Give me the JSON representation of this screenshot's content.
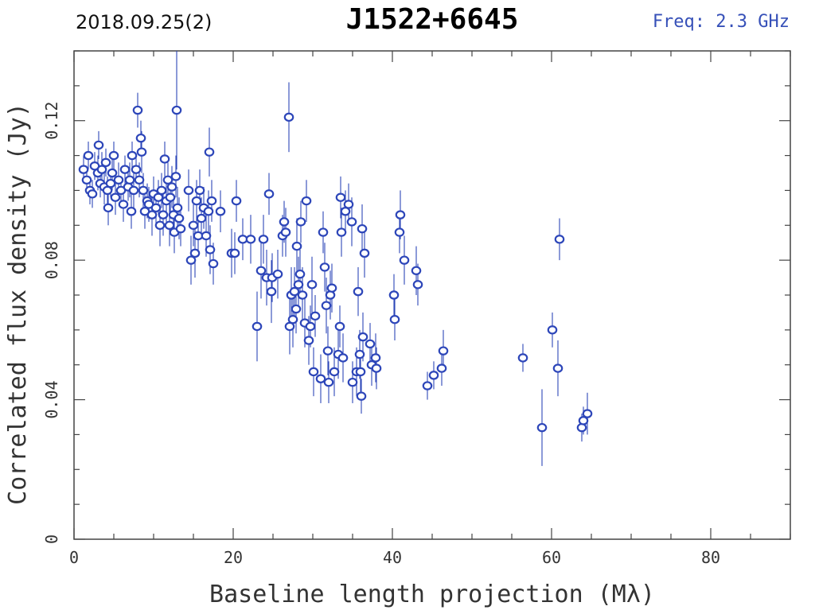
{
  "header": {
    "date_label": "2018.09.25(2)",
    "source_name": "J1522+6645",
    "freq_label": "Freq: 2.3 GHz"
  },
  "colors": {
    "marker": "#2d46b9",
    "axis": "#444444"
  },
  "chart_data": {
    "type": "scatter",
    "title": "J1522+6645",
    "xlabel": "Baseline length projection (Mλ)",
    "ylabel": "Correlated flux density (Jy)",
    "xlim": [
      0,
      90
    ],
    "ylim": [
      0,
      0.14
    ],
    "xticks": [
      0,
      20,
      40,
      60,
      80
    ],
    "xtick_labels": [
      "0",
      "20",
      "40",
      "60",
      "80"
    ],
    "yticks": [
      0,
      0.04,
      0.08,
      0.12
    ],
    "ytick_labels": [
      "0",
      "0.04",
      "0.08",
      "0.12"
    ],
    "grid": false,
    "series": [
      {
        "points": [
          [
            1.2,
            0.106,
            0.004
          ],
          [
            1.6,
            0.103,
            0.004
          ],
          [
            1.8,
            0.11,
            0.004
          ],
          [
            2.0,
            0.1,
            0.004
          ],
          [
            2.3,
            0.099,
            0.004
          ],
          [
            2.6,
            0.107,
            0.004
          ],
          [
            3.0,
            0.105,
            0.005
          ],
          [
            3.1,
            0.113,
            0.004
          ],
          [
            3.3,
            0.102,
            0.004
          ],
          [
            3.5,
            0.106,
            0.005
          ],
          [
            3.8,
            0.101,
            0.005
          ],
          [
            4.0,
            0.108,
            0.004
          ],
          [
            4.2,
            0.1,
            0.004
          ],
          [
            4.3,
            0.095,
            0.005
          ],
          [
            4.6,
            0.102,
            0.004
          ],
          [
            4.8,
            0.105,
            0.005
          ],
          [
            5.0,
            0.11,
            0.004
          ],
          [
            5.2,
            0.098,
            0.005
          ],
          [
            5.6,
            0.103,
            0.005
          ],
          [
            5.9,
            0.1,
            0.004
          ],
          [
            6.2,
            0.096,
            0.005
          ],
          [
            6.4,
            0.106,
            0.004
          ],
          [
            6.8,
            0.101,
            0.004
          ],
          [
            7.0,
            0.103,
            0.005
          ],
          [
            7.2,
            0.094,
            0.005
          ],
          [
            7.3,
            0.11,
            0.004
          ],
          [
            7.5,
            0.1,
            0.005
          ],
          [
            7.8,
            0.106,
            0.004
          ],
          [
            8.0,
            0.123,
            0.005
          ],
          [
            8.2,
            0.103,
            0.005
          ],
          [
            8.4,
            0.115,
            0.005
          ],
          [
            8.5,
            0.111,
            0.006
          ],
          [
            8.7,
            0.1,
            0.005
          ],
          [
            8.9,
            0.094,
            0.005
          ],
          [
            9.2,
            0.097,
            0.005
          ],
          [
            9.4,
            0.096,
            0.005
          ],
          [
            9.8,
            0.093,
            0.006
          ],
          [
            10.0,
            0.099,
            0.005
          ],
          [
            10.3,
            0.095,
            0.005
          ],
          [
            10.6,
            0.098,
            0.005
          ],
          [
            10.8,
            0.09,
            0.006
          ],
          [
            11.0,
            0.1,
            0.005
          ],
          [
            11.2,
            0.093,
            0.006
          ],
          [
            11.4,
            0.109,
            0.005
          ],
          [
            11.6,
            0.097,
            0.006
          ],
          [
            11.8,
            0.103,
            0.005
          ],
          [
            12.0,
            0.09,
            0.006
          ],
          [
            12.1,
            0.098,
            0.006
          ],
          [
            12.3,
            0.101,
            0.006
          ],
          [
            12.5,
            0.093,
            0.006
          ],
          [
            12.6,
            0.088,
            0.006
          ],
          [
            12.8,
            0.104,
            0.006
          ],
          [
            12.9,
            0.123,
            0.017
          ],
          [
            13.0,
            0.095,
            0.006
          ],
          [
            13.2,
            0.092,
            0.006
          ],
          [
            13.4,
            0.089,
            0.005
          ],
          [
            14.4,
            0.1,
            0.006
          ],
          [
            14.7,
            0.08,
            0.007
          ],
          [
            15.0,
            0.09,
            0.006
          ],
          [
            15.2,
            0.082,
            0.007
          ],
          [
            15.4,
            0.097,
            0.006
          ],
          [
            15.6,
            0.087,
            0.006
          ],
          [
            15.8,
            0.1,
            0.006
          ],
          [
            16.0,
            0.092,
            0.006
          ],
          [
            16.3,
            0.095,
            0.006
          ],
          [
            16.6,
            0.087,
            0.006
          ],
          [
            16.9,
            0.094,
            0.006
          ],
          [
            17.0,
            0.111,
            0.007
          ],
          [
            17.1,
            0.083,
            0.007
          ],
          [
            17.3,
            0.097,
            0.006
          ],
          [
            17.5,
            0.079,
            0.006
          ],
          [
            18.4,
            0.094,
            0.006
          ],
          [
            19.8,
            0.082,
            0.007
          ],
          [
            20.2,
            0.082,
            0.006
          ],
          [
            20.4,
            0.097,
            0.006
          ],
          [
            21.2,
            0.086,
            0.006
          ],
          [
            22.2,
            0.086,
            0.007
          ],
          [
            23.0,
            0.061,
            0.01
          ],
          [
            23.5,
            0.077,
            0.008
          ],
          [
            23.8,
            0.086,
            0.007
          ],
          [
            24.2,
            0.075,
            0.008
          ],
          [
            24.5,
            0.099,
            0.006
          ],
          [
            24.8,
            0.071,
            0.009
          ],
          [
            24.9,
            0.075,
            0.007
          ],
          [
            25.6,
            0.076,
            0.007
          ],
          [
            26.2,
            0.087,
            0.006
          ],
          [
            26.4,
            0.091,
            0.006
          ],
          [
            26.6,
            0.088,
            0.007
          ],
          [
            27.0,
            0.121,
            0.01
          ],
          [
            27.1,
            0.061,
            0.008
          ],
          [
            27.3,
            0.07,
            0.008
          ],
          [
            27.5,
            0.063,
            0.008
          ],
          [
            27.7,
            0.071,
            0.007
          ],
          [
            27.9,
            0.066,
            0.007
          ],
          [
            28.0,
            0.084,
            0.008
          ],
          [
            28.2,
            0.073,
            0.008
          ],
          [
            28.4,
            0.076,
            0.007
          ],
          [
            28.5,
            0.091,
            0.006
          ],
          [
            28.7,
            0.07,
            0.008
          ],
          [
            29.0,
            0.062,
            0.007
          ],
          [
            29.2,
            0.097,
            0.006
          ],
          [
            29.5,
            0.057,
            0.007
          ],
          [
            29.7,
            0.061,
            0.006
          ],
          [
            29.9,
            0.073,
            0.008
          ],
          [
            30.1,
            0.048,
            0.007
          ],
          [
            30.3,
            0.064,
            0.006
          ],
          [
            31.0,
            0.046,
            0.007
          ],
          [
            31.3,
            0.088,
            0.006
          ],
          [
            31.5,
            0.078,
            0.007
          ],
          [
            31.7,
            0.067,
            0.008
          ],
          [
            31.9,
            0.054,
            0.007
          ],
          [
            32.0,
            0.045,
            0.006
          ],
          [
            32.2,
            0.07,
            0.007
          ],
          [
            32.4,
            0.072,
            0.007
          ],
          [
            32.7,
            0.048,
            0.007
          ],
          [
            33.2,
            0.053,
            0.007
          ],
          [
            33.4,
            0.061,
            0.006
          ],
          [
            33.5,
            0.098,
            0.006
          ],
          [
            33.6,
            0.088,
            0.007
          ],
          [
            33.8,
            0.052,
            0.007
          ],
          [
            34.1,
            0.094,
            0.006
          ],
          [
            34.5,
            0.096,
            0.006
          ],
          [
            34.9,
            0.091,
            0.007
          ],
          [
            35.0,
            0.045,
            0.006
          ],
          [
            35.5,
            0.048,
            0.007
          ],
          [
            35.7,
            0.071,
            0.007
          ],
          [
            35.9,
            0.053,
            0.007
          ],
          [
            36.0,
            0.048,
            0.006
          ],
          [
            36.1,
            0.041,
            0.005
          ],
          [
            36.2,
            0.089,
            0.007
          ],
          [
            36.3,
            0.058,
            0.007
          ],
          [
            36.5,
            0.082,
            0.007
          ],
          [
            37.2,
            0.056,
            0.006
          ],
          [
            37.4,
            0.05,
            0.006
          ],
          [
            37.9,
            0.052,
            0.007
          ],
          [
            38.0,
            0.049,
            0.006
          ],
          [
            40.2,
            0.07,
            0.006
          ],
          [
            40.3,
            0.063,
            0.006
          ],
          [
            40.9,
            0.088,
            0.006
          ],
          [
            41.0,
            0.093,
            0.007
          ],
          [
            41.5,
            0.08,
            0.007
          ],
          [
            43.0,
            0.077,
            0.007
          ],
          [
            43.2,
            0.073,
            0.006
          ],
          [
            44.4,
            0.044,
            0.004
          ],
          [
            45.2,
            0.047,
            0.004
          ],
          [
            46.2,
            0.049,
            0.005
          ],
          [
            46.4,
            0.054,
            0.006
          ],
          [
            56.4,
            0.052,
            0.004
          ],
          [
            58.8,
            0.032,
            0.011
          ],
          [
            60.1,
            0.06,
            0.005
          ],
          [
            60.8,
            0.049,
            0.008
          ],
          [
            61.0,
            0.086,
            0.006
          ],
          [
            63.8,
            0.032,
            0.004
          ],
          [
            64.0,
            0.034,
            0.004
          ],
          [
            64.5,
            0.036,
            0.006
          ]
        ]
      }
    ]
  }
}
